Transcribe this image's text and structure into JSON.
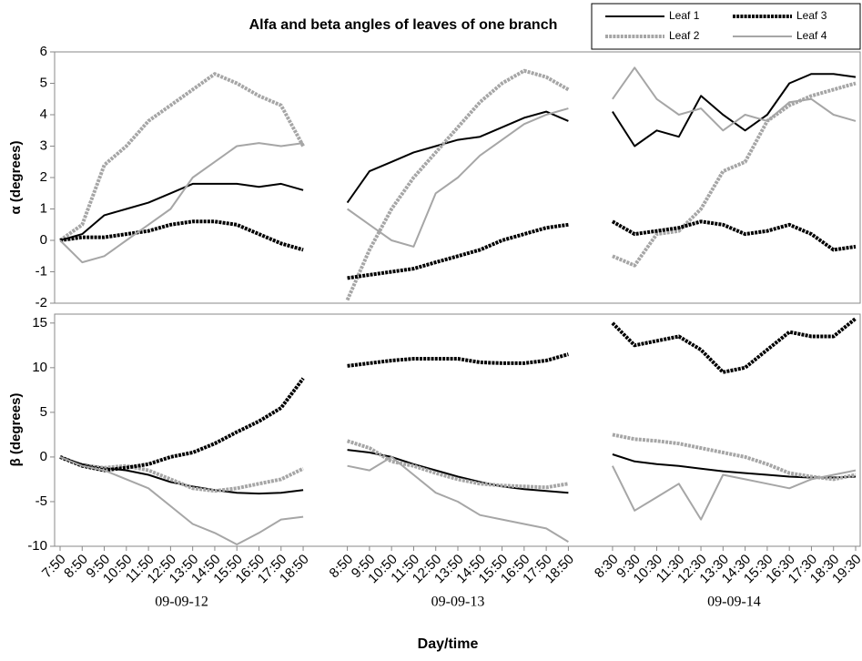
{
  "chart_data": [
    {
      "type": "line",
      "title": "Alfa and beta angles of leaves of one branch",
      "ylabel": "α (degrees)",
      "ylim": [
        -2,
        6
      ],
      "yticks": [
        -2,
        -1,
        0,
        1,
        2,
        3,
        4,
        5,
        6
      ],
      "legend": "upper right",
      "series": [
        {
          "name": "Leaf 1",
          "color": "#000000",
          "line_width": 2,
          "dashed": false,
          "values": [
            0,
            0.2,
            0.8,
            1.0,
            1.2,
            1.5,
            1.8,
            1.8,
            1.8,
            1.7,
            1.8,
            1.6,
            null,
            1.2,
            2.2,
            2.5,
            2.8,
            3.0,
            3.2,
            3.3,
            3.6,
            3.9,
            4.1,
            3.8,
            null,
            4.1,
            3.0,
            3.5,
            3.3,
            4.6,
            4.0,
            3.5,
            4.0,
            5.0,
            5.3,
            5.3,
            5.2
          ]
        },
        {
          "name": "Leaf 2",
          "color": "#a6a6a6",
          "line_width": 4,
          "dashed": true,
          "values": [
            0,
            0.5,
            2.4,
            3.0,
            3.8,
            4.3,
            4.8,
            5.3,
            5.0,
            4.6,
            4.3,
            3.0,
            null,
            -1.9,
            -0.3,
            1.0,
            2.0,
            2.8,
            3.6,
            4.4,
            5.0,
            5.4,
            5.2,
            4.8,
            null,
            -0.5,
            -0.8,
            0.2,
            0.3,
            1.0,
            2.2,
            2.5,
            3.8,
            4.3,
            4.6,
            4.8,
            5.0
          ]
        },
        {
          "name": "Leaf 3",
          "color": "#000000",
          "line_width": 4,
          "dashed": true,
          "values": [
            0,
            0.1,
            0.1,
            0.2,
            0.3,
            0.5,
            0.6,
            0.6,
            0.5,
            0.2,
            -0.1,
            -0.3,
            null,
            -1.2,
            -1.1,
            -1.0,
            -0.9,
            -0.7,
            -0.5,
            -0.3,
            0,
            0.2,
            0.4,
            0.5,
            null,
            0.6,
            0.2,
            0.3,
            0.4,
            0.6,
            0.5,
            0.2,
            0.3,
            0.5,
            0.2,
            -0.3,
            -0.2
          ]
        },
        {
          "name": "Leaf 4",
          "color": "#a6a6a6",
          "line_width": 2,
          "dashed": false,
          "values": [
            0,
            -0.7,
            -0.5,
            0,
            0.5,
            1.0,
            2.0,
            2.5,
            3.0,
            3.1,
            3.0,
            3.1,
            null,
            1.0,
            0.5,
            0,
            -0.2,
            1.5,
            2.0,
            2.7,
            3.2,
            3.7,
            4.0,
            4.2,
            null,
            4.5,
            5.5,
            4.5,
            4.0,
            4.2,
            3.5,
            4.0,
            3.8,
            4.4,
            4.5,
            4.0,
            3.8
          ]
        }
      ]
    },
    {
      "type": "line",
      "ylabel": "β (degrees)",
      "xlabel": "Day/time",
      "ylim": [
        -10,
        16
      ],
      "yticks": [
        -10,
        -5,
        0,
        5,
        10,
        15
      ],
      "categories": [
        "7:50",
        "8:50",
        "9:50",
        "10:50",
        "11:50",
        "12:50",
        "13:50",
        "14:50",
        "15:50",
        "16:50",
        "17:50",
        "18:50",
        null,
        "8:50",
        "9:50",
        "10:50",
        "11:50",
        "12:50",
        "13:50",
        "14:50",
        "15:50",
        "16:50",
        "17:50",
        "18:50",
        null,
        "8:30",
        "9:30",
        "10:30",
        "11:30",
        "12:30",
        "13:30",
        "14:30",
        "15:30",
        "16:30",
        "17:30",
        "18:30",
        "19:30"
      ],
      "day_labels": [
        "09-09-12",
        "09-09-13",
        "09-09-14"
      ],
      "series": [
        {
          "color": "#000000",
          "line_width": 2,
          "dashed": false,
          "values": [
            0,
            -0.8,
            -1.2,
            -1.5,
            -2.0,
            -2.8,
            -3.3,
            -3.7,
            -4.0,
            -4.1,
            -4.0,
            -3.7,
            null,
            0.8,
            0.5,
            0,
            -0.8,
            -1.5,
            -2.2,
            -2.8,
            -3.3,
            -3.6,
            -3.8,
            -4.0,
            null,
            0.3,
            -0.5,
            -0.8,
            -1.0,
            -1.3,
            -1.6,
            -1.8,
            -2.0,
            -2.2,
            -2.3,
            -2.3,
            -2.2
          ]
        },
        {
          "color": "#a6a6a6",
          "line_width": 4,
          "dashed": true,
          "values": [
            0,
            -1.0,
            -1.2,
            -1.0,
            -1.5,
            -2.5,
            -3.5,
            -3.8,
            -3.5,
            -3.0,
            -2.5,
            -1.3,
            null,
            1.8,
            1.0,
            -0.5,
            -1.0,
            -1.8,
            -2.5,
            -3.0,
            -3.2,
            -3.3,
            -3.4,
            -3.0,
            null,
            2.5,
            2.0,
            1.8,
            1.5,
            1.0,
            0.5,
            0,
            -0.8,
            -1.8,
            -2.2,
            -2.5,
            -2.0
          ]
        },
        {
          "color": "#000000",
          "line_width": 4,
          "dashed": true,
          "values": [
            0,
            -1.0,
            -1.5,
            -1.2,
            -0.8,
            0,
            0.5,
            1.5,
            2.8,
            4.0,
            5.5,
            8.8,
            null,
            10.2,
            10.5,
            10.8,
            11.0,
            11.0,
            11.0,
            10.6,
            10.5,
            10.5,
            10.8,
            11.5,
            null,
            15.0,
            12.5,
            13.0,
            13.5,
            12.0,
            9.5,
            10.0,
            12.0,
            14.0,
            13.5,
            13.5,
            15.5
          ]
        },
        {
          "color": "#a6a6a6",
          "line_width": 2,
          "dashed": false,
          "values": [
            0,
            -1.0,
            -1.5,
            -2.5,
            -3.5,
            -5.5,
            -7.5,
            -8.5,
            -9.8,
            -8.5,
            -7.0,
            -6.7,
            null,
            -1.0,
            -1.5,
            0,
            -2.0,
            -4.0,
            -5.0,
            -6.5,
            -7.0,
            -7.5,
            -8.0,
            -9.5,
            null,
            -1.0,
            -6.0,
            -4.5,
            -3.0,
            -7.0,
            -2.0,
            -2.5,
            -3.0,
            -3.5,
            -2.5,
            -2.0,
            -1.5
          ]
        }
      ]
    }
  ]
}
